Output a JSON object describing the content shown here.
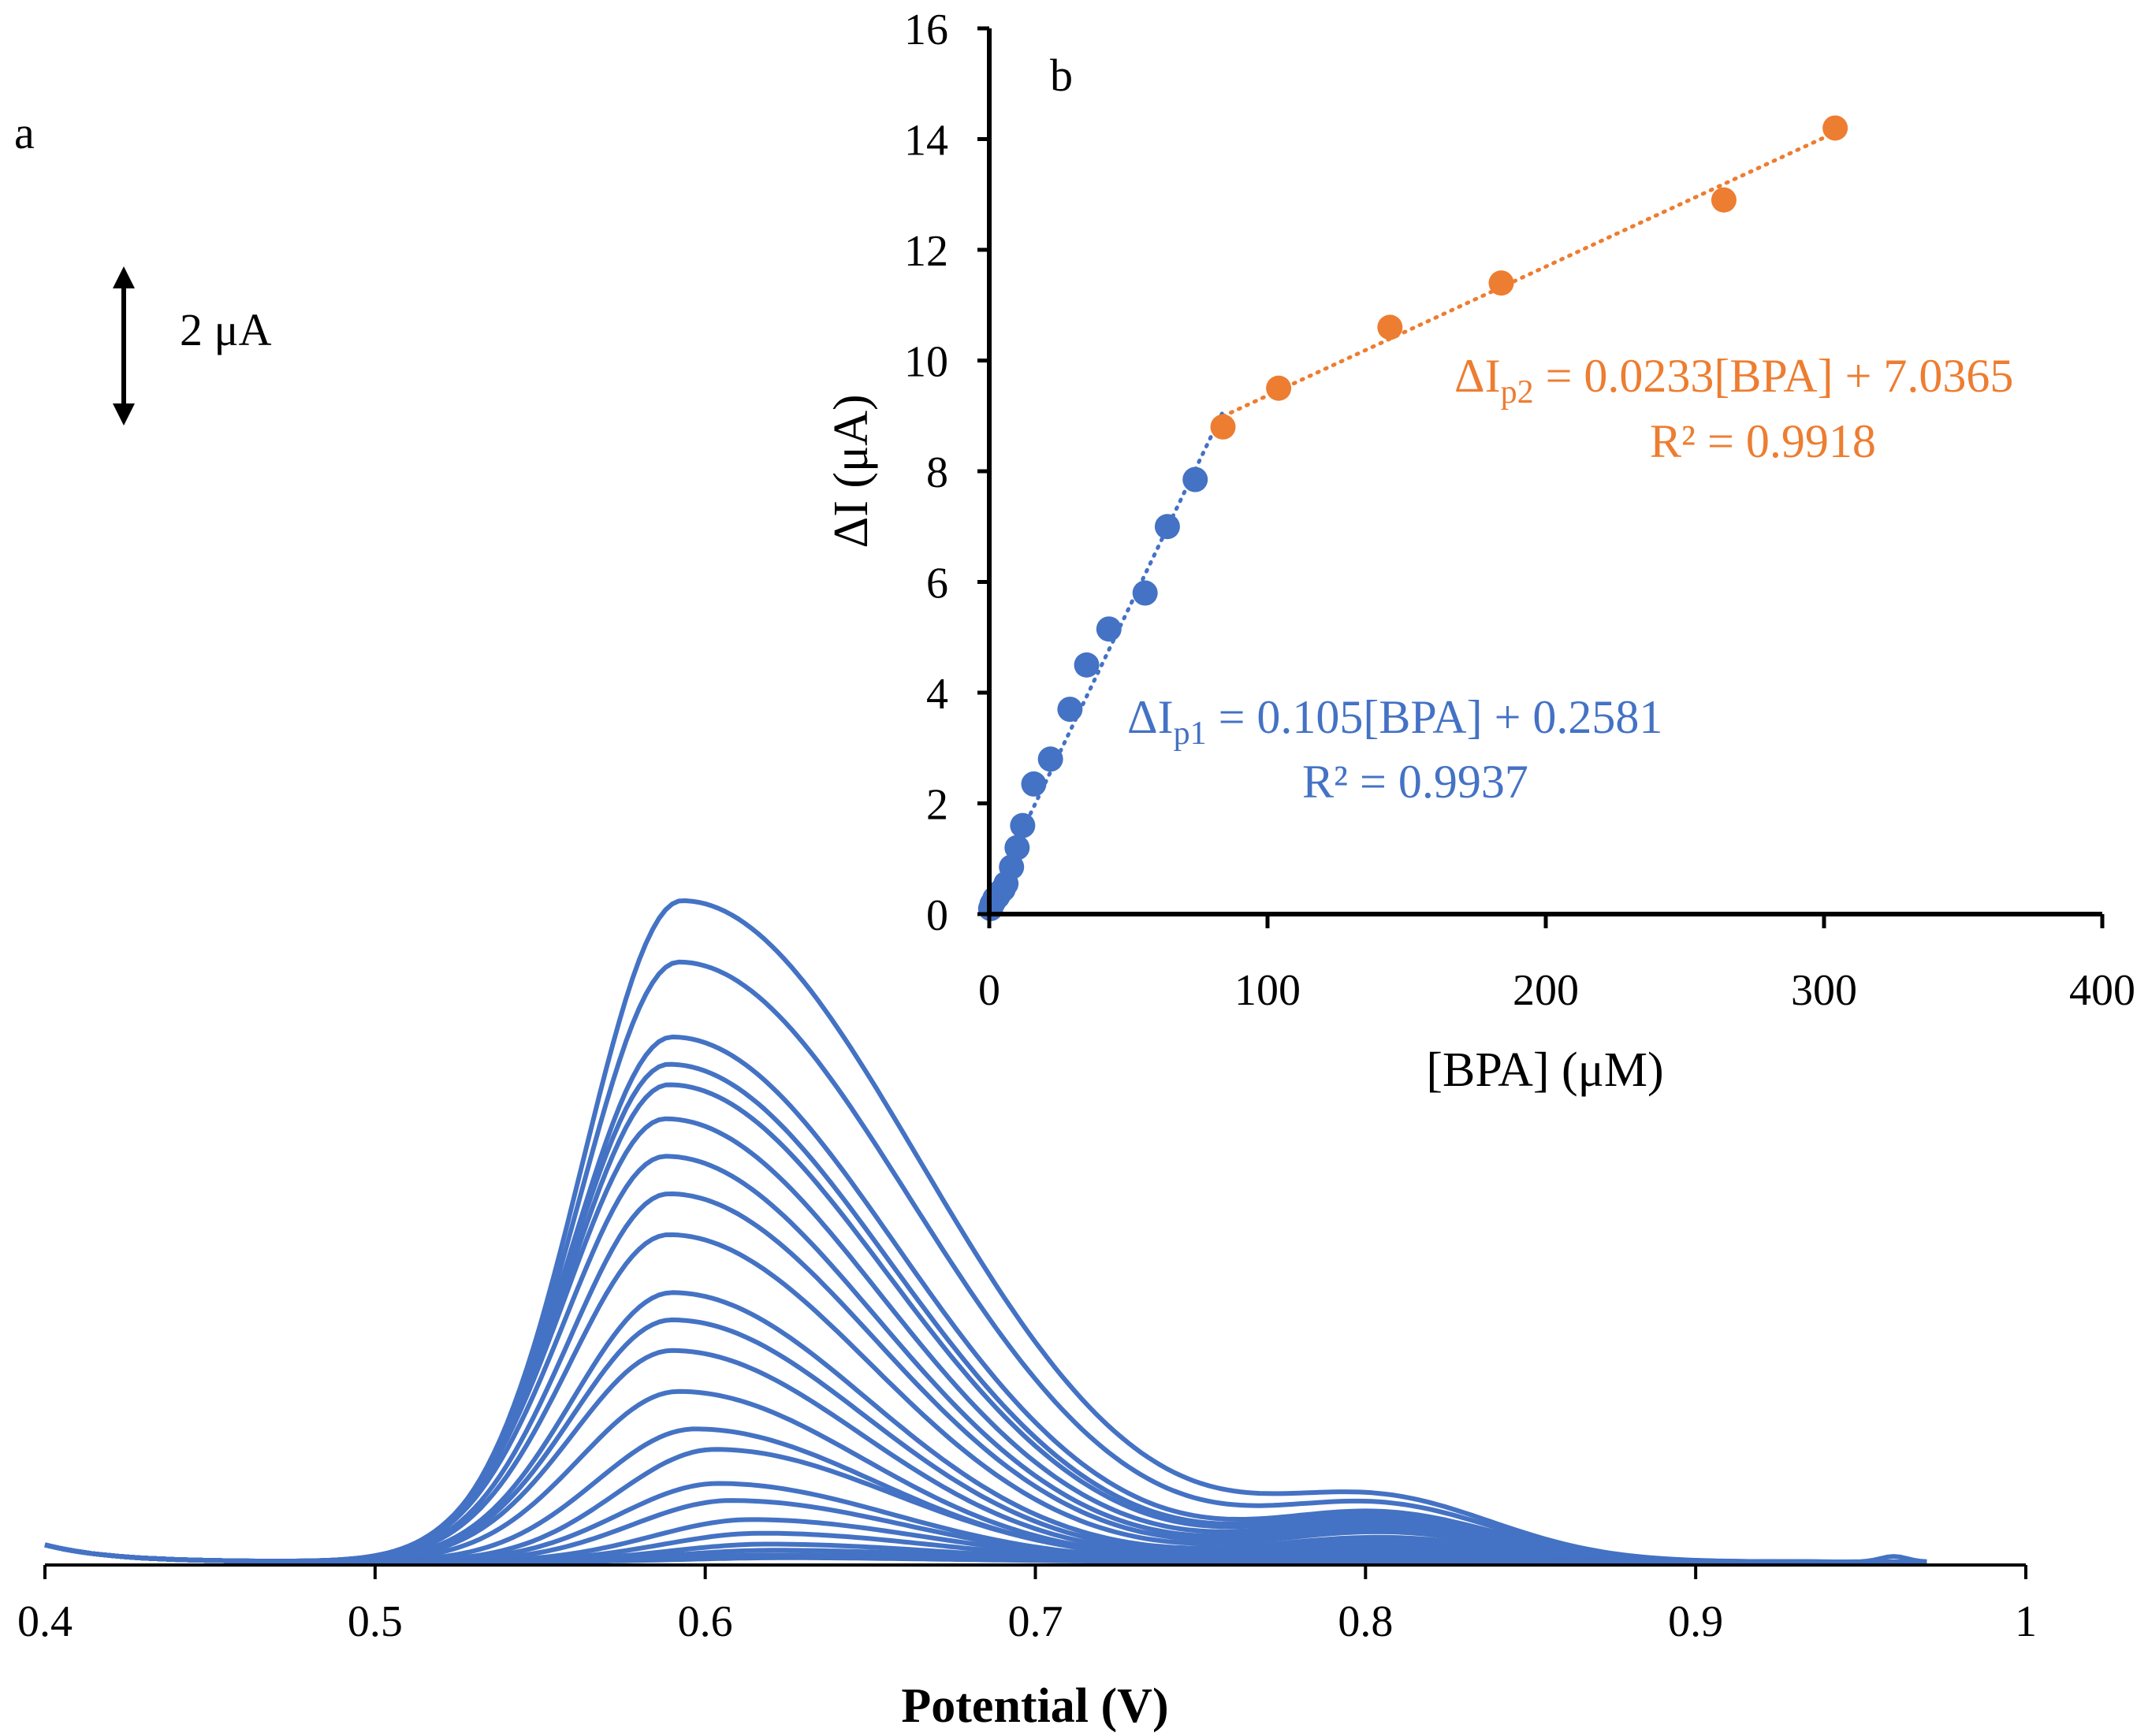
{
  "figure": {
    "colors": {
      "curves": "#4472C4",
      "series1": "#4472C4",
      "series2": "#ED7D31",
      "axis": "#000000"
    }
  },
  "chart_data": [
    {
      "id": "a",
      "panel_label": "a",
      "type": "line",
      "title": "",
      "xlabel": "Potential (V)",
      "ylabel": "",
      "xlim": [
        0.4,
        1.0
      ],
      "x_ticks": [
        "0.4",
        "0.5",
        "0.6",
        "0.7",
        "0.8",
        "0.9",
        "1"
      ],
      "scale_bar_label": "2 μA",
      "scale_bar_value": 2,
      "unit": "μA",
      "baseline_note": "curves are stacked on a common baseline; peak heights in μA above baseline",
      "peak_heights": [
        9.7,
        8.8,
        7.7,
        7.3,
        7.0,
        6.5,
        5.95,
        5.4,
        4.8,
        3.95,
        3.55,
        3.1,
        2.5,
        1.95,
        1.65,
        1.15,
        0.9,
        0.62,
        0.42,
        0.26,
        0.17,
        0.1,
        0.06
      ],
      "peak_potentials": [
        0.593,
        0.592,
        0.59,
        0.589,
        0.589,
        0.588,
        0.588,
        0.589,
        0.589,
        0.59,
        0.59,
        0.59,
        0.592,
        0.597,
        0.603,
        0.604,
        0.608,
        0.614,
        0.617,
        0.619,
        0.621,
        0.623,
        0.624
      ]
    },
    {
      "id": "b",
      "panel_label": "b",
      "type": "scatter",
      "title": "",
      "xlabel": "[BPA] (μM)",
      "ylabel": "ΔI (μA)",
      "xlim": [
        0,
        400
      ],
      "ylim": [
        0,
        16
      ],
      "x_ticks": [
        "0",
        "100",
        "200",
        "300",
        "400"
      ],
      "y_ticks": [
        "0",
        "2",
        "4",
        "6",
        "8",
        "10",
        "12",
        "14",
        "16"
      ],
      "series": [
        {
          "name": "ΔIp1",
          "x": [
            0.5,
            1,
            1.5,
            2,
            3,
            4,
            5,
            6,
            8,
            10,
            12,
            16,
            22,
            29,
            35,
            43,
            56,
            64,
            74
          ],
          "y": [
            0.1,
            0.18,
            0.22,
            0.28,
            0.32,
            0.4,
            0.45,
            0.55,
            0.85,
            1.2,
            1.6,
            2.35,
            2.8,
            3.7,
            4.5,
            5.15,
            5.8,
            7.0,
            7.85
          ],
          "trendline": {
            "slope": 0.105,
            "intercept": 0.2581,
            "x_range": [
              0,
              84
            ]
          },
          "equation_prefix": "ΔI",
          "equation_subscript": "p1",
          "equation_rest": " = 0.105[BPA] + 0.2581",
          "r2_label": "R² = 0.9937"
        },
        {
          "name": "ΔIp2",
          "x": [
            84,
            104,
            144,
            184,
            264,
            304
          ],
          "y": [
            8.8,
            9.5,
            10.6,
            11.4,
            12.9,
            14.2
          ],
          "trendline": {
            "slope": 0.0233,
            "intercept": 7.0365,
            "x_range": [
              84,
              304
            ]
          },
          "equation_prefix": "ΔI",
          "equation_subscript": "p2",
          "equation_rest": " = 0.0233[BPA] + 7.0365",
          "r2_label": "R² = 0.9918"
        }
      ]
    }
  ]
}
